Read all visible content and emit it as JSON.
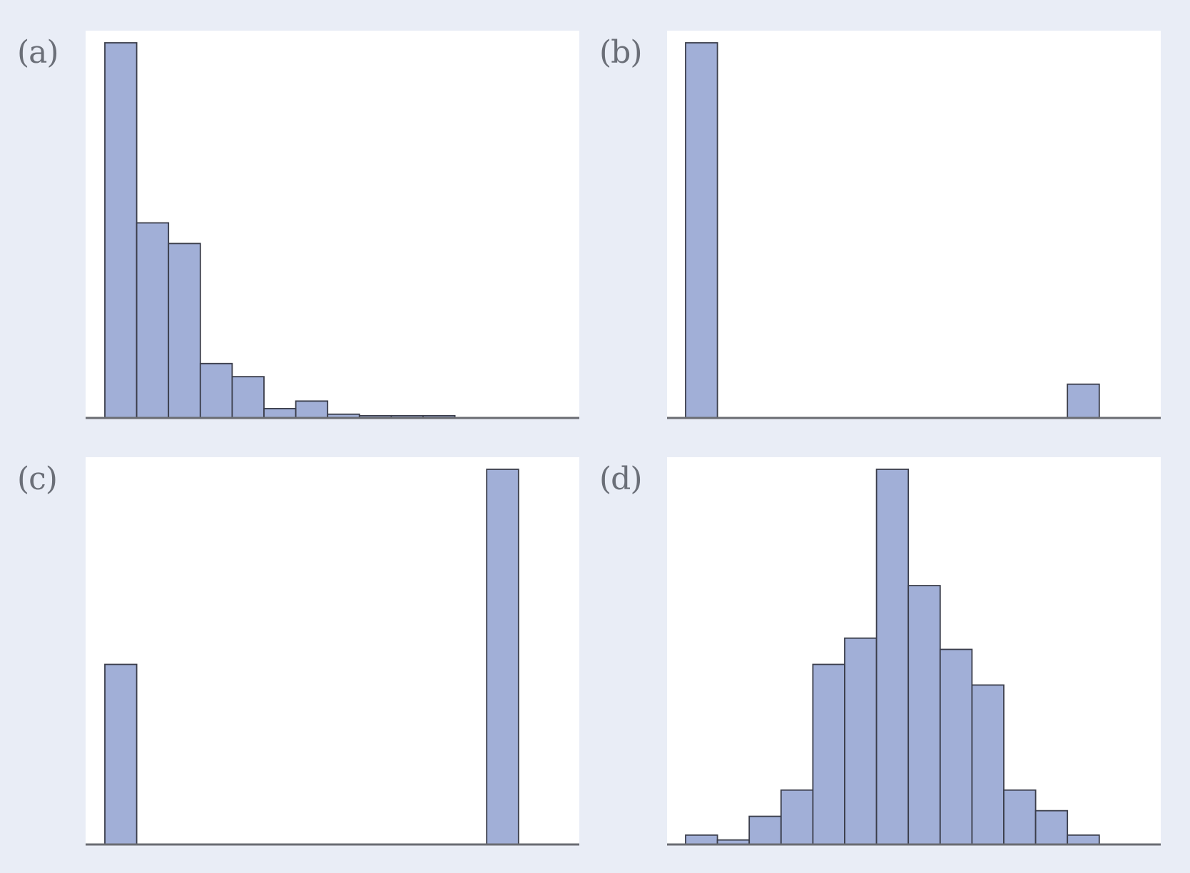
{
  "colors": {
    "background": "#e9edf6",
    "plot_area": "#ffffff",
    "bar_fill": "#a1afd7",
    "bar_stroke": "#3a3d4a",
    "axis": "#6a6c72"
  },
  "chart_data": [
    {
      "id": "a",
      "panel_label": "(a)",
      "type": "bar",
      "values": [
        100,
        52,
        46.5,
        14.5,
        11,
        2.5,
        4.5,
        1,
        0.6,
        0.6,
        0.6
      ],
      "bin_start": 0,
      "bin_count": 15,
      "ylim": [
        0,
        100
      ],
      "grid": false,
      "legend": "none"
    },
    {
      "id": "b",
      "panel_label": "(b)",
      "type": "bar",
      "values": [
        100,
        0,
        0,
        0,
        0,
        0,
        0,
        0,
        0,
        0,
        0,
        0,
        9
      ],
      "bin_start": 0,
      "bin_count": 15,
      "ylim": [
        0,
        100
      ],
      "grid": false,
      "legend": "none"
    },
    {
      "id": "c",
      "panel_label": "(c)",
      "type": "bar",
      "values": [
        48,
        0,
        0,
        0,
        0,
        0,
        0,
        0,
        0,
        0,
        0,
        0,
        100
      ],
      "bin_start": 0,
      "bin_count": 15,
      "ylim": [
        0,
        100
      ],
      "grid": false,
      "legend": "none"
    },
    {
      "id": "d",
      "panel_label": "(d)",
      "type": "bar",
      "values": [
        2.5,
        1.2,
        7.5,
        14.5,
        48,
        55,
        100,
        69,
        52,
        42.5,
        14.5,
        9,
        2.5
      ],
      "bin_start": 0,
      "bin_count": 15,
      "ylim": [
        0,
        100
      ],
      "grid": false,
      "legend": "none"
    }
  ]
}
